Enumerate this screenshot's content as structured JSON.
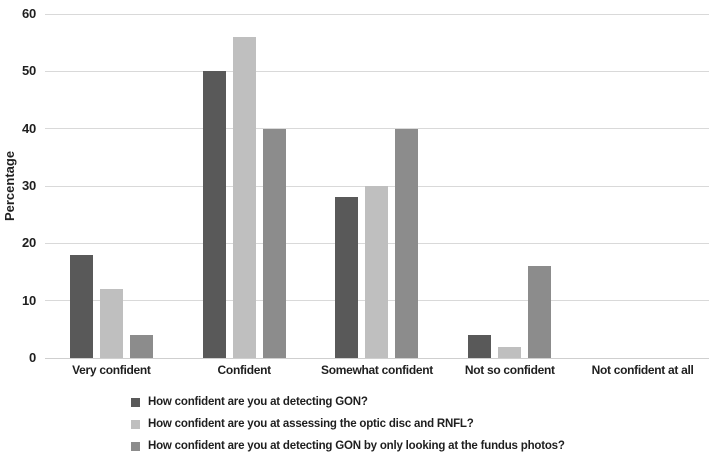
{
  "chart_data": {
    "type": "bar",
    "title": "",
    "xlabel": "",
    "ylabel": "Percentage",
    "ylim": [
      0,
      60
    ],
    "yticks": [
      0,
      10,
      20,
      30,
      40,
      50,
      60
    ],
    "grid": true,
    "legend_position": "bottom-left",
    "categories": [
      "Very confident",
      "Confident",
      "Somewhat confident",
      "Not so confident",
      "Not confident at all"
    ],
    "series": [
      {
        "name": "How confident are you at detecting GON?",
        "color": "#595959",
        "values": [
          18,
          50,
          28,
          4,
          0
        ]
      },
      {
        "name": "How confident are you at assessing the optic disc and RNFL?",
        "color": "#bfbfbf",
        "values": [
          12,
          56,
          30,
          2,
          0
        ]
      },
      {
        "name": "How confident are you at detecting GON by only looking at the fundus photos?",
        "color": "#8c8c8c",
        "values": [
          4,
          40,
          40,
          16,
          0
        ]
      }
    ]
  }
}
